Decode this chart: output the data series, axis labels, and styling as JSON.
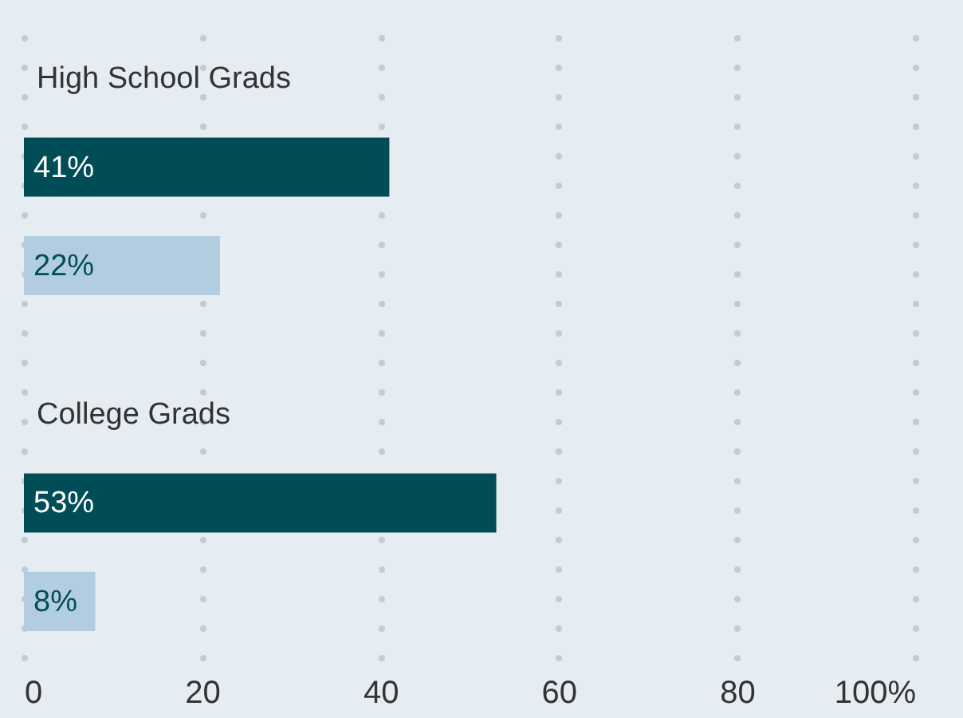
{
  "chart_data": {
    "type": "bar",
    "orientation": "horizontal",
    "categories": [
      "High School Grads",
      "College Grads"
    ],
    "series": [
      {
        "color": "#004d57",
        "values": [
          41,
          53
        ],
        "value_labels": [
          "41%",
          "53%"
        ]
      },
      {
        "color": "#b3cde0",
        "values": [
          22,
          8
        ],
        "value_labels": [
          "22%",
          "8%"
        ]
      }
    ],
    "xlim": [
      0,
      100
    ],
    "xticks": [
      0,
      20,
      40,
      60,
      80,
      {
        "value": 100,
        "label": "100%"
      }
    ],
    "grid": "x"
  }
}
